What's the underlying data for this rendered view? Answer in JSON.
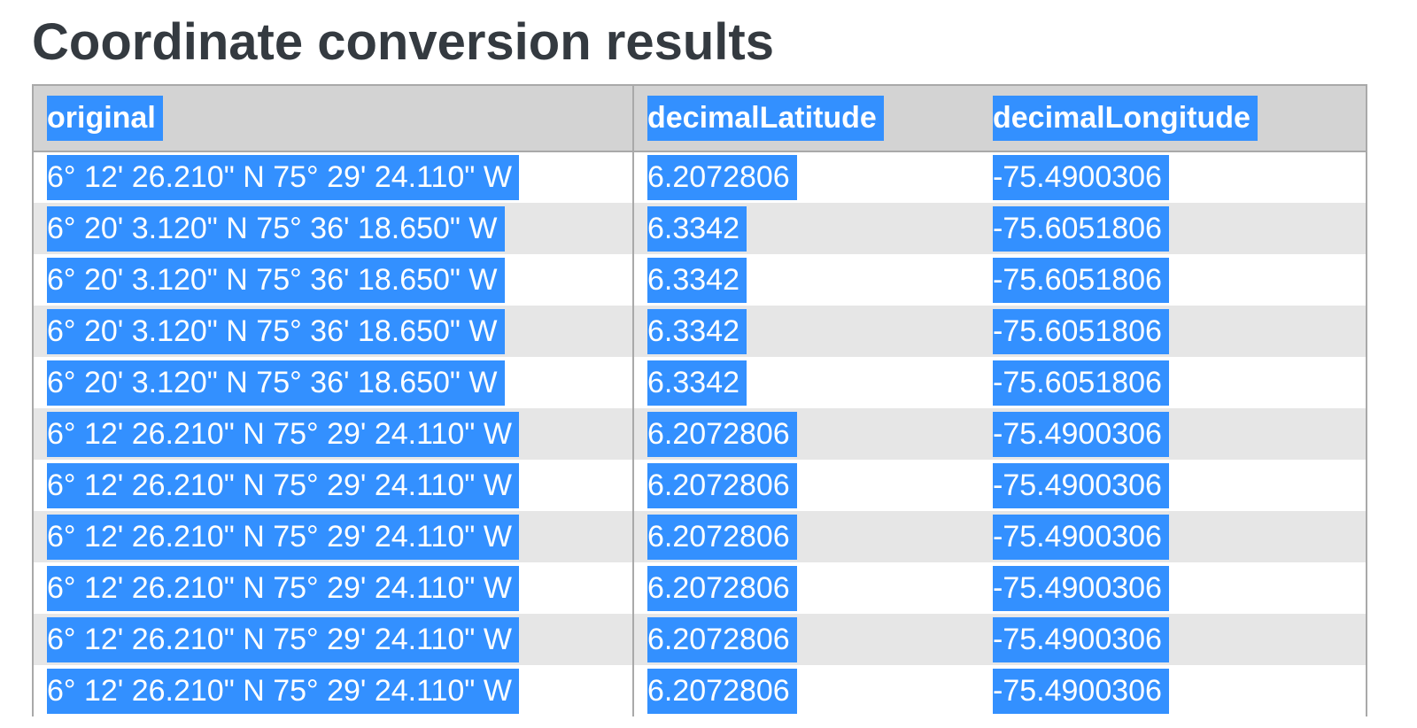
{
  "page": {
    "title": "Coordinate conversion results"
  },
  "colors": {
    "selection_highlight": "#3390ff",
    "header_background": "#d3d3d3",
    "stripe_background": "#e6e6e6",
    "title_text": "#343a40",
    "border": "#a9a9a9"
  },
  "table": {
    "columns": [
      "original",
      "decimalLatitude",
      "decimalLongitude"
    ],
    "rows": [
      {
        "original": "6° 12' 26.210\" N 75° 29' 24.110\" W",
        "decimalLatitude": "6.2072806",
        "decimalLongitude": "-75.4900306"
      },
      {
        "original": "6° 20' 3.120\" N 75° 36' 18.650\" W",
        "decimalLatitude": "6.3342",
        "decimalLongitude": "-75.6051806"
      },
      {
        "original": "6° 20' 3.120\" N 75° 36' 18.650\" W",
        "decimalLatitude": "6.3342",
        "decimalLongitude": "-75.6051806"
      },
      {
        "original": "6° 20' 3.120\" N 75° 36' 18.650\" W",
        "decimalLatitude": "6.3342",
        "decimalLongitude": "-75.6051806"
      },
      {
        "original": "6° 20' 3.120\" N 75° 36' 18.650\" W",
        "decimalLatitude": "6.3342",
        "decimalLongitude": "-75.6051806"
      },
      {
        "original": "6° 12' 26.210\" N 75° 29' 24.110\" W",
        "decimalLatitude": "6.2072806",
        "decimalLongitude": "-75.4900306"
      },
      {
        "original": "6° 12' 26.210\" N 75° 29' 24.110\" W",
        "decimalLatitude": "6.2072806",
        "decimalLongitude": "-75.4900306"
      },
      {
        "original": "6° 12' 26.210\" N 75° 29' 24.110\" W",
        "decimalLatitude": "6.2072806",
        "decimalLongitude": "-75.4900306"
      },
      {
        "original": "6° 12' 26.210\" N 75° 29' 24.110\" W",
        "decimalLatitude": "6.2072806",
        "decimalLongitude": "-75.4900306"
      },
      {
        "original": "6° 12' 26.210\" N 75° 29' 24.110\" W",
        "decimalLatitude": "6.2072806",
        "decimalLongitude": "-75.4900306"
      },
      {
        "original": "6° 12' 26.210\" N 75° 29' 24.110\" W",
        "decimalLatitude": "6.2072806",
        "decimalLongitude": "-75.4900306"
      }
    ]
  }
}
